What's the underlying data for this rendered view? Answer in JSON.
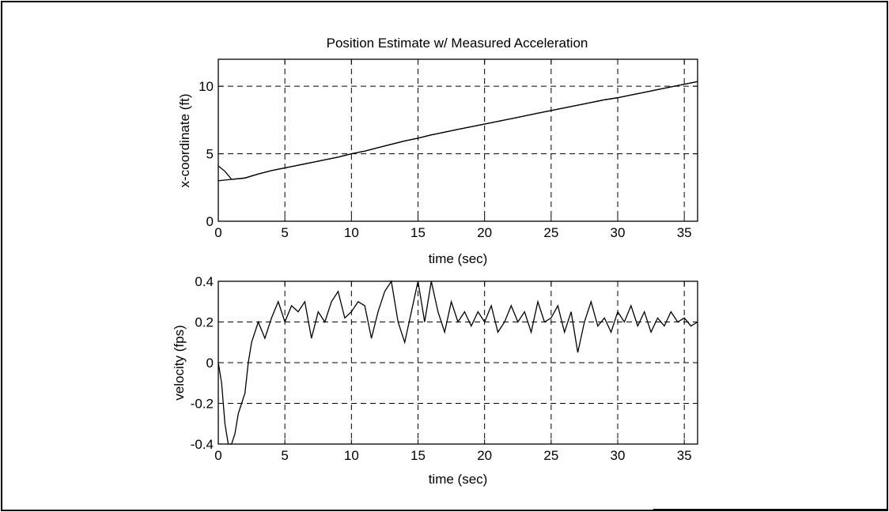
{
  "chart_data": [
    {
      "type": "line",
      "title": "Position Estimate w/ Measured Acceleration",
      "xlabel": "time (sec)",
      "ylabel": "x-coordinate (ft)",
      "xlim": [
        0,
        36
      ],
      "ylim": [
        0,
        12
      ],
      "xticks": [
        "0",
        "5",
        "10",
        "15",
        "20",
        "25",
        "30",
        "35"
      ],
      "yticks": [
        "0",
        "5",
        "10"
      ],
      "grid": true,
      "series": [
        {
          "x": [
            0,
            0.5,
            1,
            1.5,
            2,
            2.5,
            3,
            4,
            5,
            6,
            7,
            8,
            9,
            10,
            11,
            12,
            13,
            14,
            15,
            16,
            17,
            18,
            19,
            20,
            21,
            22,
            23,
            24,
            25,
            26,
            27,
            28,
            29,
            30,
            31,
            32,
            33,
            34,
            35,
            36
          ],
          "values": [
            4.1,
            3.7,
            3.1,
            3.15,
            3.2,
            3.35,
            3.5,
            3.75,
            3.95,
            4.15,
            4.35,
            4.55,
            4.75,
            5.0,
            5.2,
            5.45,
            5.7,
            5.95,
            6.15,
            6.4,
            6.6,
            6.8,
            7.0,
            7.2,
            7.4,
            7.6,
            7.8,
            8.0,
            8.2,
            8.4,
            8.6,
            8.8,
            9.0,
            9.15,
            9.35,
            9.55,
            9.75,
            9.95,
            10.15,
            10.35
          ]
        },
        {
          "x": [
            0,
            0.5,
            1,
            1.5,
            2,
            2.5,
            3,
            4,
            5,
            6,
            7,
            8,
            9,
            10,
            11,
            12,
            13,
            14,
            15,
            16,
            17,
            18,
            19,
            20,
            21,
            22,
            23,
            24,
            25,
            26,
            27,
            28,
            29,
            30,
            31,
            32,
            33,
            34,
            35,
            36
          ],
          "values": [
            3.0,
            3.05,
            3.1,
            3.15,
            3.2,
            3.35,
            3.5,
            3.75,
            3.95,
            4.15,
            4.35,
            4.55,
            4.75,
            5.0,
            5.2,
            5.45,
            5.7,
            5.95,
            6.15,
            6.4,
            6.6,
            6.8,
            7.0,
            7.2,
            7.4,
            7.6,
            7.8,
            8.0,
            8.2,
            8.4,
            8.6,
            8.8,
            9.0,
            9.15,
            9.35,
            9.55,
            9.75,
            9.95,
            10.15,
            10.35
          ]
        }
      ]
    },
    {
      "type": "line",
      "title": "",
      "xlabel": "time (sec)",
      "ylabel": "velocity (fps)",
      "xlim": [
        0,
        36
      ],
      "ylim": [
        -0.4,
        0.4
      ],
      "xticks": [
        "0",
        "5",
        "10",
        "15",
        "20",
        "25",
        "30",
        "35"
      ],
      "yticks": [
        "-0.4",
        "-0.2",
        "0",
        "0.2",
        "0.4"
      ],
      "grid": true,
      "series": [
        {
          "x": [
            0,
            0.25,
            0.5,
            0.75,
            1.0,
            1.25,
            1.5,
            1.75,
            2.0,
            2.25,
            2.5,
            2.75,
            3.0,
            3.5,
            4.0,
            4.5,
            5.0,
            5.5,
            6.0,
            6.5,
            7.0,
            7.5,
            8.0,
            8.5,
            9.0,
            9.5,
            10.0,
            10.5,
            11.0,
            11.5,
            12.0,
            12.5,
            13.0,
            13.5,
            14.0,
            14.5,
            15.0,
            15.5,
            16.0,
            16.5,
            17.0,
            17.5,
            18.0,
            18.5,
            19.0,
            19.5,
            20.0,
            20.5,
            21.0,
            21.5,
            22.0,
            22.5,
            23.0,
            23.5,
            24.0,
            24.5,
            25.0,
            25.5,
            26.0,
            26.5,
            27.0,
            27.5,
            28.0,
            28.5,
            29.0,
            29.5,
            30.0,
            30.5,
            31.0,
            31.5,
            32.0,
            32.5,
            33.0,
            33.5,
            34.0,
            34.5,
            35.0,
            35.5,
            36.0
          ],
          "values": [
            0.0,
            -0.1,
            -0.3,
            -0.4,
            -0.4,
            -0.35,
            -0.25,
            -0.2,
            -0.15,
            0.0,
            0.1,
            0.15,
            0.2,
            0.12,
            0.22,
            0.3,
            0.2,
            0.28,
            0.25,
            0.3,
            0.12,
            0.25,
            0.2,
            0.3,
            0.35,
            0.22,
            0.25,
            0.3,
            0.28,
            0.12,
            0.25,
            0.35,
            0.4,
            0.2,
            0.1,
            0.25,
            0.4,
            0.2,
            0.4,
            0.25,
            0.15,
            0.3,
            0.2,
            0.25,
            0.18,
            0.25,
            0.2,
            0.28,
            0.15,
            0.2,
            0.28,
            0.2,
            0.25,
            0.15,
            0.3,
            0.2,
            0.22,
            0.28,
            0.15,
            0.25,
            0.05,
            0.2,
            0.3,
            0.18,
            0.22,
            0.15,
            0.25,
            0.2,
            0.28,
            0.18,
            0.25,
            0.15,
            0.22,
            0.18,
            0.25,
            0.2,
            0.22,
            0.18,
            0.2
          ]
        }
      ]
    }
  ]
}
